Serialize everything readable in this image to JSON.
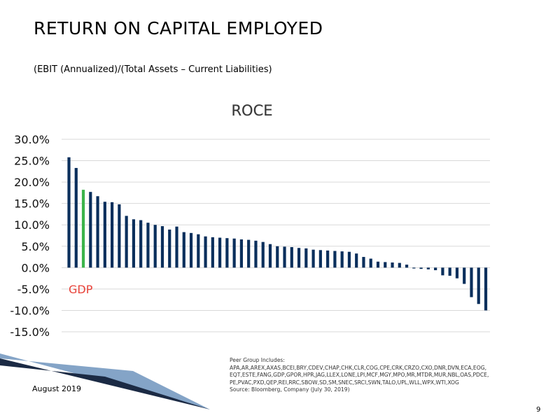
{
  "header": {
    "title": "RETURN ON CAPITAL EMPLOYED",
    "subtitle": "(EBIT (Annualized)/(Total Assets – Current Liabilities)"
  },
  "chart_data": {
    "type": "bar",
    "title": "ROCE",
    "xlabel": "",
    "ylabel": "",
    "ylim": [
      -15,
      30
    ],
    "yticks": [
      "30.0%",
      "25.0%",
      "20.0%",
      "15.0%",
      "10.0%",
      "5.0%",
      "0.0%",
      "-5.0%",
      "-10.0%",
      "-15.0%"
    ],
    "grid": true,
    "highlight_index": 2,
    "highlight_label": "GDP",
    "colors": {
      "bar": "#0a2f5c",
      "highlight": "#3cb44b",
      "highlight_label": "#e8433a",
      "grid": "#d9d9d9"
    },
    "values": [
      25.8,
      23.3,
      18.2,
      17.7,
      16.7,
      15.4,
      15.3,
      14.8,
      12.1,
      11.3,
      11.1,
      10.5,
      10.0,
      9.7,
      8.9,
      9.6,
      8.3,
      8.1,
      7.8,
      7.3,
      7.1,
      7.0,
      6.9,
      6.8,
      6.6,
      6.5,
      6.3,
      6.0,
      5.5,
      5.0,
      4.9,
      4.8,
      4.6,
      4.5,
      4.2,
      4.1,
      4.0,
      3.9,
      3.8,
      3.7,
      3.3,
      2.5,
      2.1,
      1.4,
      1.3,
      1.2,
      1.1,
      0.7,
      -0.2,
      -0.3,
      -0.4,
      -0.6,
      -1.8,
      -1.9,
      -2.5,
      -3.8,
      -6.9,
      -8.5,
      -10.0
    ]
  },
  "footer": {
    "date": "August 2019",
    "peer_lines": [
      "Peer Group Includes:",
      "APA,AR,AREX,AXAS,BCEI,BRY,CDEV,CHAP,CHK,CLR,COG,CPE,CRK,CRZO,CXO,DNR,DVN,ECA,EOG,",
      "EQT,ESTE,FANG,GDP,GPOR,HPR,JAG,LLEX,LONE,LPI,MCF,MGY,MPO,MR,MTDR,MUR,NBL,OAS,PDCE,",
      "PE,PVAC,PXD,QEP,REI,RRC,SBOW,SD,SM,SNEC,SRCI,SWN,TALO,UPL,WLL,WPX,WTI,XOG",
      "Source: Bloomberg, Company (July 30, 2019)"
    ],
    "page_number": "9"
  }
}
